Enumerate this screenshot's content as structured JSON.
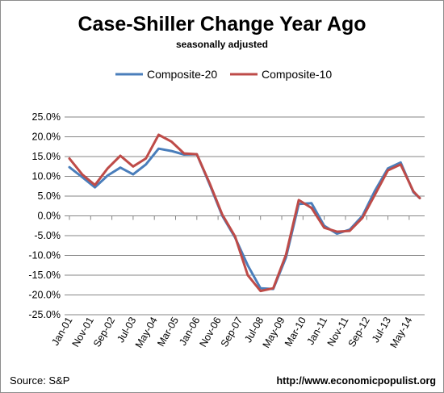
{
  "chart_data": {
    "type": "line",
    "title": "Case-Shiller Change Year Ago",
    "subtitle": "seasonally adjusted",
    "xlabel": "",
    "ylabel": "",
    "ylim": [
      -25,
      25
    ],
    "y_ticks": [
      "25.0%",
      "20.0%",
      "15.0%",
      "10.0%",
      "5.0%",
      "0.0%",
      "-5.0%",
      "-10.0%",
      "-15.0%",
      "-20.0%",
      "-25.0%"
    ],
    "x_tick_labels": [
      "Jan-01",
      "Nov-01",
      "Sep-02",
      "Jul-03",
      "May-04",
      "Mar-05",
      "Jan-06",
      "Nov-06",
      "Sep-07",
      "Jul-08",
      "May-09",
      "Mar-10",
      "Jan-11",
      "Nov-11",
      "Sep-12",
      "Jul-13",
      "May-14"
    ],
    "grid": true,
    "legend_position": "top",
    "x": [
      "Jan-01",
      "Jul-01",
      "Jan-02",
      "Jul-02",
      "Jan-03",
      "Jul-03",
      "Jan-04",
      "Jul-04",
      "Jan-05",
      "Jul-05",
      "Jan-06",
      "Jul-06",
      "Jan-07",
      "Jul-07",
      "Jan-08",
      "Jul-08",
      "Jan-09",
      "Jul-09",
      "Jan-10",
      "Jul-10",
      "Jan-11",
      "Jul-11",
      "Jan-12",
      "Jul-12",
      "Jan-13",
      "Jul-13",
      "Jan-14",
      "Jul-14",
      "Oct-14"
    ],
    "series": [
      {
        "name": "Composite-20",
        "color": "#4a7ebb",
        "values": [
          12.3,
          9.8,
          7.2,
          10.2,
          12.2,
          10.5,
          13.0,
          17.0,
          16.4,
          15.5,
          15.6,
          8.0,
          0.0,
          -5.5,
          -12.5,
          -18.3,
          -18.5,
          -10.5,
          3.0,
          3.2,
          -2.5,
          -4.5,
          -3.5,
          0.0,
          6.5,
          12.0,
          13.5,
          6.0,
          4.5
        ]
      },
      {
        "name": "Composite-10",
        "color": "#be4b48",
        "values": [
          14.5,
          10.5,
          7.8,
          12.0,
          15.2,
          12.5,
          14.5,
          20.5,
          18.8,
          15.8,
          15.6,
          8.3,
          0.3,
          -5.2,
          -15.0,
          -19.0,
          -18.3,
          -9.8,
          4.0,
          2.0,
          -3.0,
          -4.0,
          -3.8,
          -0.5,
          5.5,
          11.5,
          13.0,
          6.2,
          4.5
        ]
      }
    ]
  },
  "footer": {
    "source": "Source: S&P",
    "url": "http://www.economicpopulist.org"
  }
}
